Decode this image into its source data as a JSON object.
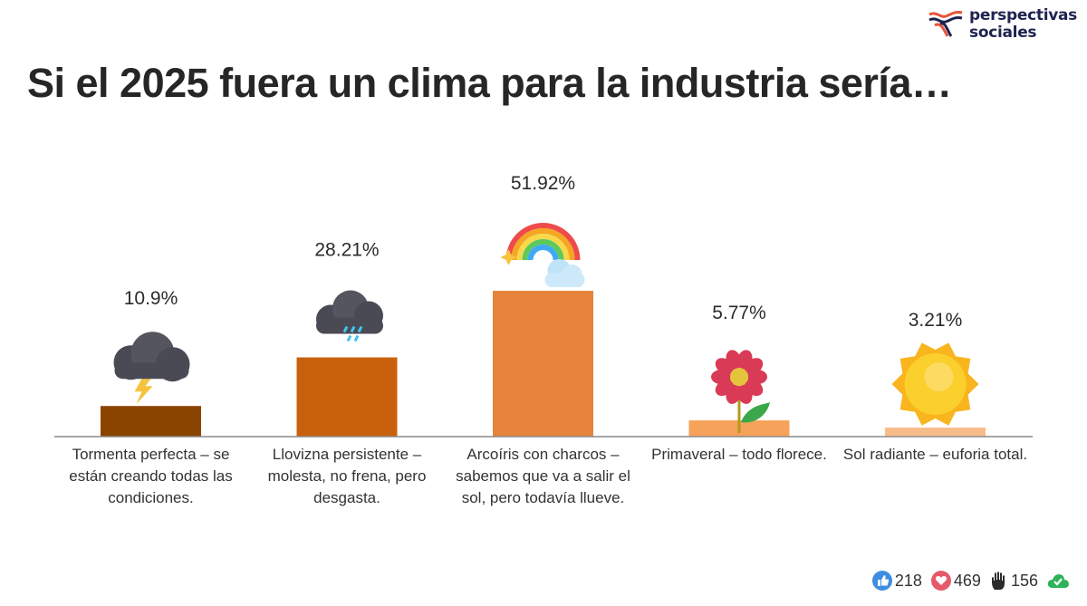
{
  "brand": {
    "line1": "perspectivas",
    "line2": "sociales"
  },
  "chart_data": {
    "type": "bar",
    "title": "Si el 2025 fuera un clima para la industria sería…",
    "xlabel": "",
    "ylabel": "",
    "ylim": [
      0,
      60
    ],
    "grid": false,
    "categories": [
      "Tormenta perfecta – se están creando todas las condiciones.",
      "Llovizna persistente – molesta, no frena, pero desgasta.",
      "Arcoíris con charcos – sabemos que va a salir el sol, pero todavía llueve.",
      "Primaveral – todo florece.",
      "Sol radiante – euforia total."
    ],
    "values": [
      10.9,
      28.21,
      51.92,
      5.77,
      3.21
    ],
    "value_labels": [
      "10.9%",
      "28.21%",
      "51.92%",
      "5.77%",
      "3.21%"
    ],
    "icons": [
      "thunderstorm-cloud-icon",
      "rain-cloud-icon",
      "rainbow-cloud-icon",
      "flower-icon",
      "sun-icon"
    ],
    "colors": [
      "#8b4300",
      "#c9600c",
      "#e5843a",
      "#f7a25b",
      "#f8bc8a"
    ]
  },
  "reactions": [
    {
      "icon": "thumbs-up-icon",
      "count": "218",
      "color": "#3d8ee0"
    },
    {
      "icon": "heart-icon",
      "count": "469",
      "color": "#e55a6a"
    },
    {
      "icon": "raised-hand-icon",
      "count": "156",
      "color": "#2b2b2b"
    },
    {
      "icon": "cloud-check-icon",
      "count": "",
      "color": "#2fb35a"
    }
  ]
}
